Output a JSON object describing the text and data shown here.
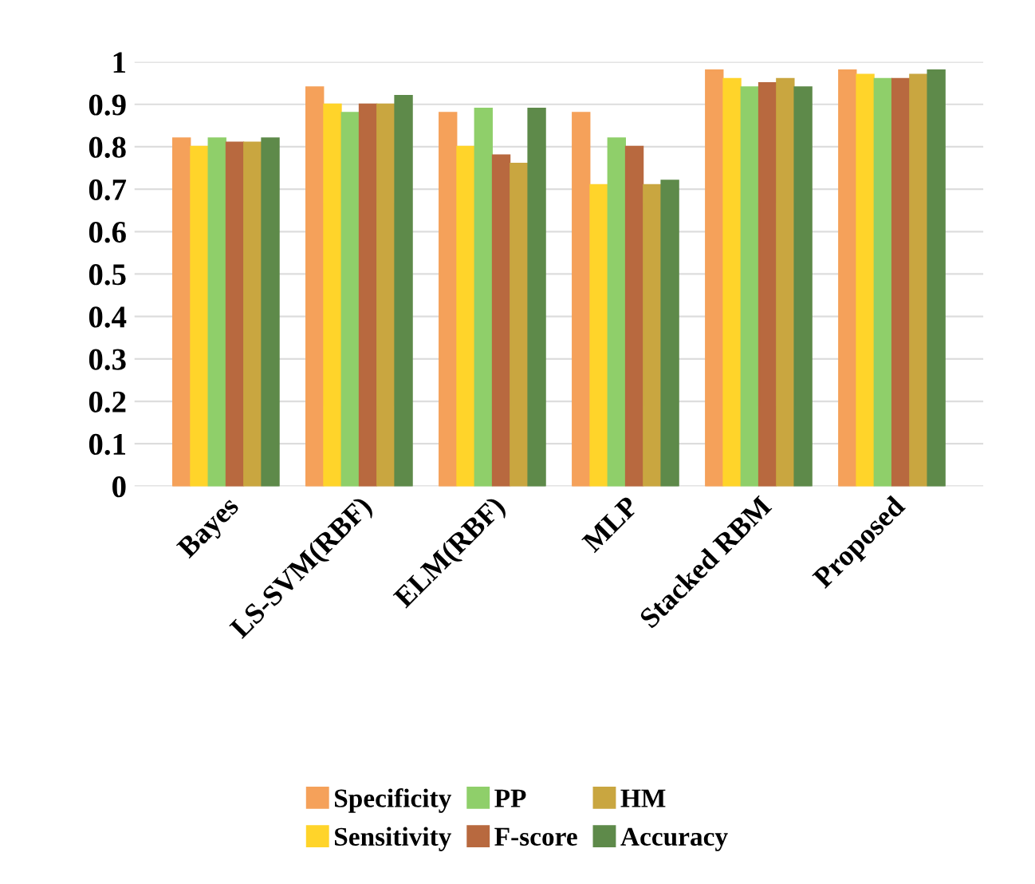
{
  "chart_data": {
    "type": "bar",
    "categories": [
      "Bayes",
      "LS-SVM(RBF)",
      "ELM(RBF)",
      "MLP",
      "Stacked RBM",
      "Proposed"
    ],
    "series": [
      {
        "name": "Specificity",
        "color": "#f5a15a",
        "values": [
          0.82,
          0.94,
          0.88,
          0.88,
          0.98,
          0.98
        ]
      },
      {
        "name": "Sensitivity",
        "color": "#ffd42a",
        "values": [
          0.8,
          0.9,
          0.8,
          0.71,
          0.96,
          0.97
        ]
      },
      {
        "name": "PP",
        "color": "#8fcf6a",
        "values": [
          0.82,
          0.88,
          0.89,
          0.82,
          0.94,
          0.96
        ]
      },
      {
        "name": "F-score",
        "color": "#b8693f",
        "values": [
          0.81,
          0.9,
          0.78,
          0.8,
          0.95,
          0.96
        ]
      },
      {
        "name": "HM",
        "color": "#c9a640",
        "values": [
          0.81,
          0.9,
          0.76,
          0.71,
          0.96,
          0.97
        ]
      },
      {
        "name": "Accuracy",
        "color": "#5e8a4a",
        "values": [
          0.82,
          0.92,
          0.89,
          0.72,
          0.94,
          0.98
        ]
      }
    ],
    "ylim": [
      0,
      1
    ],
    "yticks": [
      0,
      0.1,
      0.2,
      0.3,
      0.4,
      0.5,
      0.6,
      0.7,
      0.8,
      0.9,
      1
    ],
    "grid": "y",
    "legend": "bottom"
  }
}
